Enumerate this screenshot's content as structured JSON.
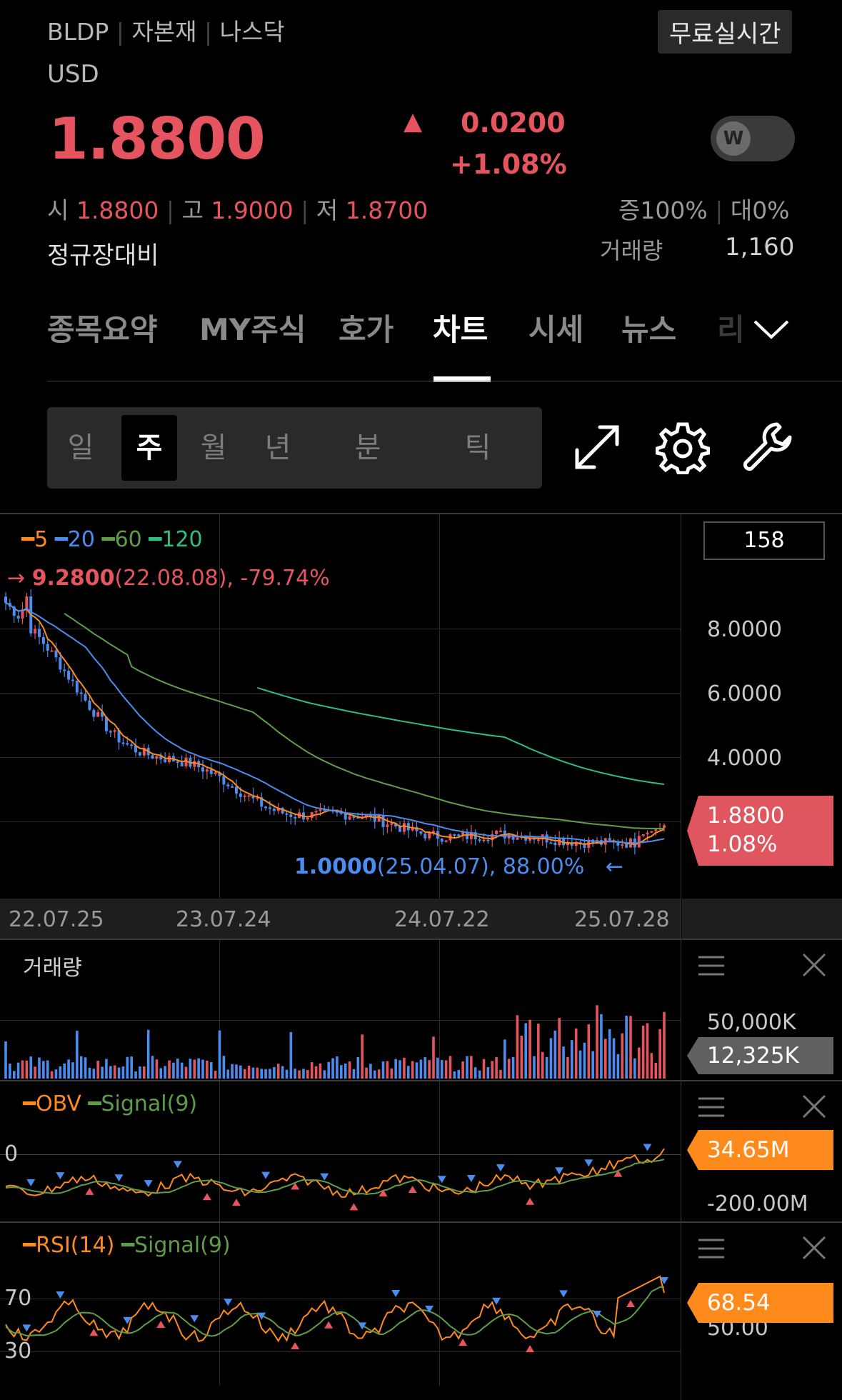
{
  "header": {
    "ticker": "BLDP",
    "sector": "자본재",
    "market": "나스닥",
    "currency": "USD",
    "realtime_badge": "무료실시간",
    "price": "1.8800",
    "change_arrow": "▲",
    "change": "0.0200",
    "change_pct": "+1.08%",
    "toggle_icon": "W",
    "open_label": "시",
    "open": "1.8800",
    "high_label": "고",
    "high": "1.9000",
    "low_label": "저",
    "low": "1.8700",
    "bid_ratio": "증100%",
    "ask_ratio": "대0%",
    "session_label": "정규장대비",
    "volume_label": "거래량",
    "volume": "1,160"
  },
  "tabs": [
    {
      "label": "종목요약",
      "active": false
    },
    {
      "label": "MY주식",
      "active": false
    },
    {
      "label": "호가",
      "active": false
    },
    {
      "label": "차트",
      "active": true
    },
    {
      "label": "시세",
      "active": false
    },
    {
      "label": "뉴스",
      "active": false
    },
    {
      "label": "리",
      "active": false
    }
  ],
  "periods": [
    {
      "label": "일",
      "active": false
    },
    {
      "label": "주",
      "active": true
    },
    {
      "label": "월",
      "active": false
    },
    {
      "label": "년",
      "active": false
    },
    {
      "label": "분",
      "active": false
    },
    {
      "label": "틱",
      "active": false
    }
  ],
  "toolbar_icons": [
    "expand-icon",
    "gear-icon",
    "wrench-icon"
  ],
  "chart": {
    "ma_legend": [
      {
        "label": "5",
        "color": "#ff8a1c"
      },
      {
        "label": "20",
        "color": "#4b8cf0"
      },
      {
        "label": "60",
        "color": "#5f9e48"
      },
      {
        "label": "120",
        "color": "#2bbf86"
      }
    ],
    "candle_count": "158",
    "high_note_arrow": "→",
    "high_value": "9.2800",
    "high_note": "(22.08.08), -79.74%",
    "low_value": "1.0000",
    "low_note": "(25.04.07), 88.00%",
    "low_note_arrow": "←",
    "y_ticks": [
      "8.0000",
      "6.0000",
      "4.0000"
    ],
    "current_price": "1.8800",
    "current_pct": "1.08%",
    "x_ticks": [
      "22.07.25",
      "23.07.24",
      "24.07.22",
      "25.07.28"
    ]
  },
  "volume_panel": {
    "title": "거래량",
    "tick": "50,000K",
    "current": "12,325K"
  },
  "obv_panel": {
    "legend_main": "OBV",
    "legend_signal": "Signal(9)",
    "zero_tick": "0",
    "tick_low": "-200.00M",
    "current": "34.65M"
  },
  "rsi_panel": {
    "legend_main": "RSI(14)",
    "legend_signal": "Signal(9)",
    "tick_70": "70",
    "tick_30": "30",
    "tick_50": "50.00",
    "current": "68.54"
  },
  "colors": {
    "up": "#e5545f",
    "down": "#4b8cf0",
    "orange": "#ff8a1c",
    "signal_green": "#5f9e48",
    "price_tag_bg": "#e0565f",
    "vol_tag_bg": "#606060"
  }
}
